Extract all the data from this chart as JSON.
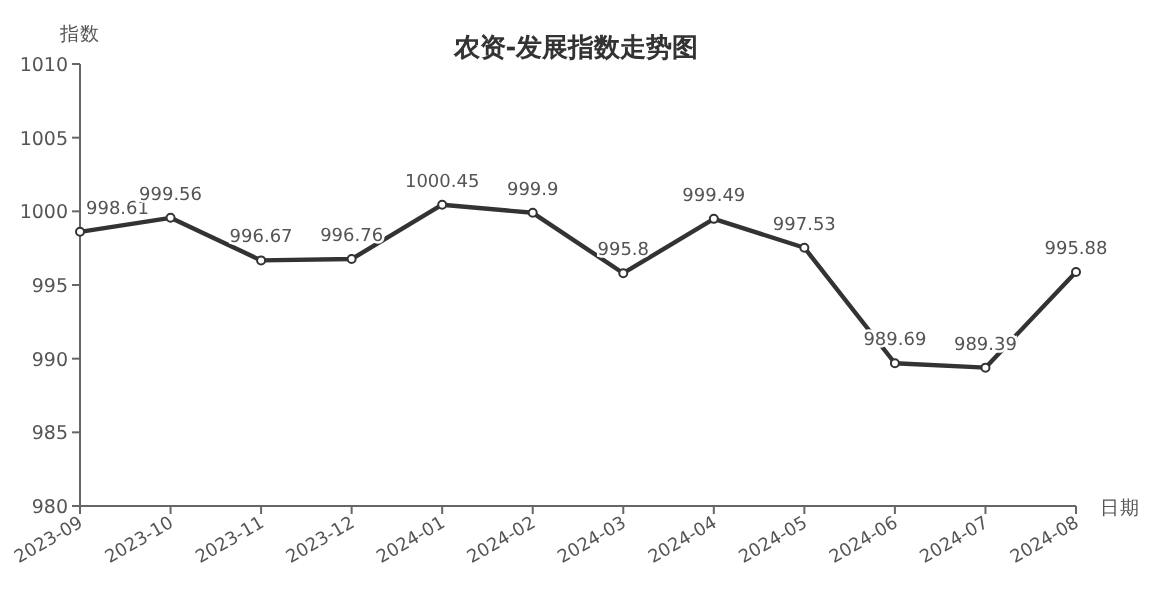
{
  "chart_data": {
    "type": "line",
    "title": "农资-发展指数走势图",
    "xlabel": "日期",
    "ylabel": "指数",
    "categories": [
      "2023-09",
      "2023-10",
      "2023-11",
      "2023-12",
      "2024-01",
      "2024-02",
      "2024-03",
      "2024-04",
      "2024-05",
      "2024-06",
      "2024-07",
      "2024-08"
    ],
    "series": [
      {
        "color": "#333333",
        "values": [
          998.61,
          999.56,
          996.67,
          996.76,
          1000.45,
          999.9,
          995.8,
          999.49,
          997.53,
          989.69,
          989.39,
          995.88
        ]
      }
    ],
    "ylim": [
      980,
      1010
    ],
    "yticks": [
      980,
      985,
      990,
      995,
      1000,
      1005,
      1010
    ],
    "data_labels": true,
    "marker": "circle",
    "line_style": "solid",
    "grid": false
  }
}
